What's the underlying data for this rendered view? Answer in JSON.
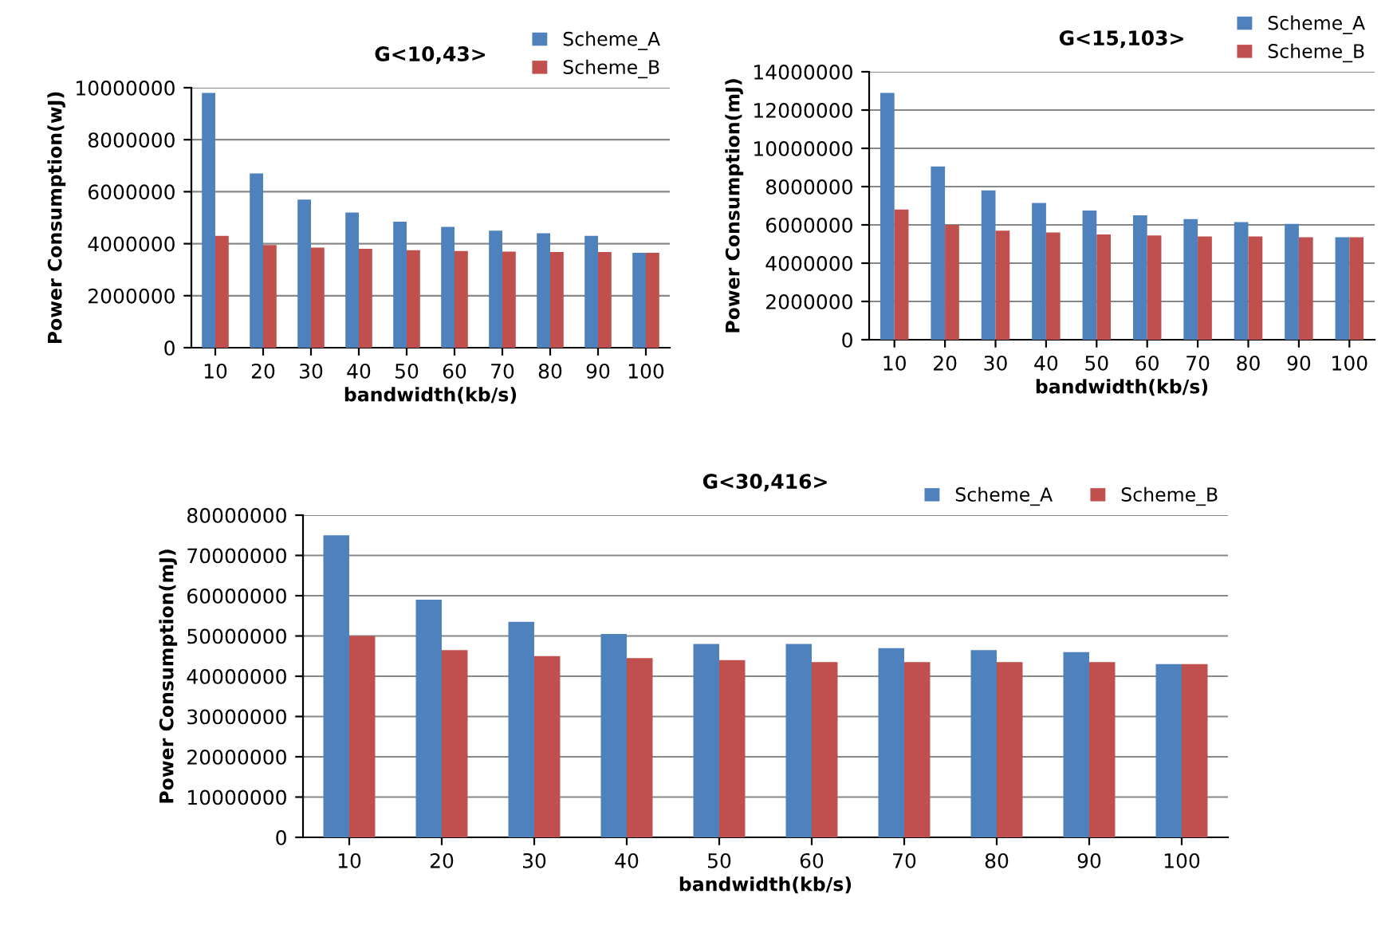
{
  "chart_data": [
    {
      "type": "bar",
      "title": "G<10,43>",
      "xlabel": "bandwidth(kb/s)",
      "ylabel": "Power Consumption(wJ)",
      "categories": [
        "10",
        "20",
        "30",
        "40",
        "50",
        "60",
        "70",
        "80",
        "90",
        "100"
      ],
      "series": [
        {
          "name": "Scheme_A",
          "color": "#4f81bd",
          "values": [
            9800000,
            6700000,
            5700000,
            5200000,
            4850000,
            4650000,
            4500000,
            4400000,
            4300000,
            3650000
          ]
        },
        {
          "name": "Scheme_B",
          "color": "#c0504d",
          "values": [
            4300000,
            3950000,
            3850000,
            3800000,
            3750000,
            3720000,
            3700000,
            3680000,
            3680000,
            3650000
          ]
        }
      ],
      "ylim": [
        0,
        10000000
      ],
      "yticks": [
        0,
        2000000,
        4000000,
        6000000,
        8000000,
        10000000
      ],
      "grid": "y",
      "legend": "top right"
    },
    {
      "type": "bar",
      "title": "G<15,103>",
      "xlabel": "bandwidth(kb/s)",
      "ylabel": "Power Consumption(mJ)",
      "categories": [
        "10",
        "20",
        "30",
        "40",
        "50",
        "60",
        "70",
        "80",
        "90",
        "100"
      ],
      "series": [
        {
          "name": "Scheme_A",
          "color": "#4f81bd",
          "values": [
            12900000,
            9050000,
            7800000,
            7150000,
            6750000,
            6500000,
            6300000,
            6150000,
            6050000,
            5350000
          ]
        },
        {
          "name": "Scheme_B",
          "color": "#c0504d",
          "values": [
            6800000,
            6000000,
            5700000,
            5600000,
            5500000,
            5450000,
            5400000,
            5400000,
            5350000,
            5350000
          ]
        }
      ],
      "ylim": [
        0,
        14000000
      ],
      "yticks": [
        0,
        2000000,
        4000000,
        6000000,
        8000000,
        10000000,
        12000000,
        14000000
      ],
      "grid": "y",
      "legend": "top right"
    },
    {
      "type": "bar",
      "title": "G<30,416>",
      "xlabel": "bandwidth(kb/s)",
      "ylabel": "Power Consumption(mJ)",
      "categories": [
        "10",
        "20",
        "30",
        "40",
        "50",
        "60",
        "70",
        "80",
        "90",
        "100"
      ],
      "series": [
        {
          "name": "Scheme_A",
          "color": "#4f81bd",
          "values": [
            75000000,
            59000000,
            53500000,
            50500000,
            48000000,
            48000000,
            47000000,
            46500000,
            46000000,
            43000000
          ]
        },
        {
          "name": "Scheme_B",
          "color": "#c0504d",
          "values": [
            50000000,
            46500000,
            45000000,
            44500000,
            44000000,
            43500000,
            43500000,
            43500000,
            43500000,
            43000000
          ]
        }
      ],
      "ylim": [
        0,
        80000000
      ],
      "yticks": [
        0,
        10000000,
        20000000,
        30000000,
        40000000,
        50000000,
        60000000,
        70000000,
        80000000
      ],
      "grid": "y",
      "legend": "top right"
    }
  ]
}
